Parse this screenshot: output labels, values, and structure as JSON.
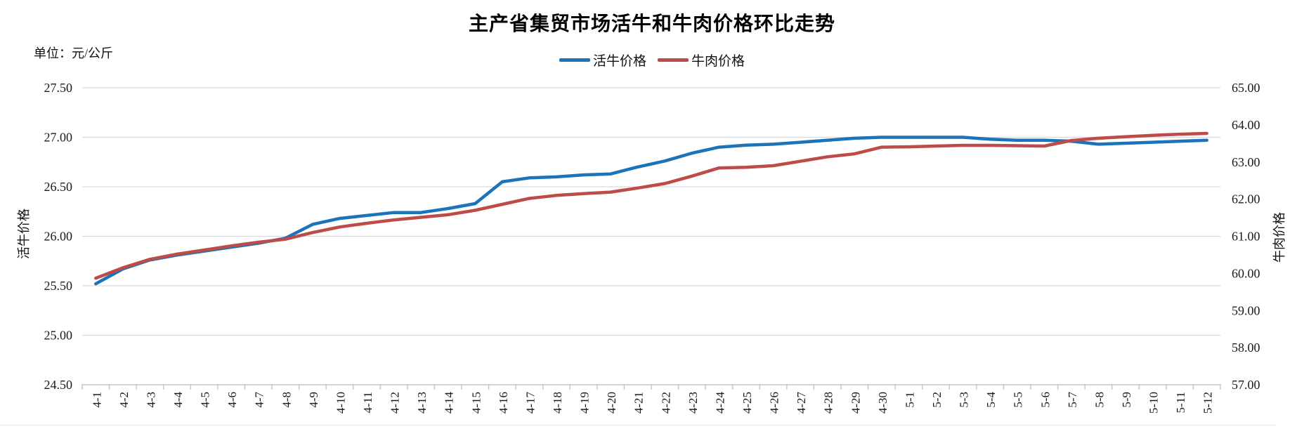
{
  "title": "主产省集贸市场活牛和牛肉价格环比走势",
  "unit_label": "单位：元/公斤",
  "colors": {
    "live_cattle_line": "#1b73b9",
    "beef_line": "#bd4b47",
    "gridline": "#d9d9d9",
    "axis_line": "#c6c6c6",
    "label_text": "#1a1a1a"
  },
  "chart_data": {
    "type": "line",
    "title": "主产省集贸市场活牛和牛肉价格环比走势",
    "unit": "元/公斤",
    "grid": true,
    "legend_position": "top",
    "categories": [
      "4-1",
      "4-2",
      "4-3",
      "4-4",
      "4-5",
      "4-6",
      "4-7",
      "4-8",
      "4-9",
      "4-10",
      "4-11",
      "4-12",
      "4-13",
      "4-14",
      "4-15",
      "4-16",
      "4-17",
      "4-18",
      "4-19",
      "4-20",
      "4-21",
      "4-22",
      "4-23",
      "4-24",
      "4-25",
      "4-26",
      "4-27",
      "4-28",
      "4-29",
      "4-30",
      "5-1",
      "5-2",
      "5-3",
      "5-4",
      "5-5",
      "5-6",
      "5-7",
      "5-8",
      "5-9",
      "5-10",
      "5-11",
      "5-12"
    ],
    "left_axis": {
      "label": "活牛价格",
      "min": 24.5,
      "max": 27.5,
      "step": 0.5,
      "tick_labels": [
        "27.50",
        "27.00",
        "26.50",
        "26.00",
        "25.50",
        "25.00",
        "24.50"
      ]
    },
    "right_axis": {
      "label": "牛肉价格",
      "min": 57,
      "max": 65,
      "step": 1,
      "tick_labels": [
        "65.00",
        "64.00",
        "63.00",
        "62.00",
        "61.00",
        "60.00",
        "59.00",
        "58.00",
        "57.00"
      ]
    },
    "series": [
      {
        "name": "活牛价格",
        "axis": "left",
        "color": "#1b73b9",
        "values": [
          25.52,
          25.67,
          25.76,
          25.81,
          25.85,
          25.89,
          25.93,
          25.98,
          26.12,
          26.18,
          26.21,
          26.24,
          26.24,
          26.28,
          26.33,
          26.55,
          26.59,
          26.6,
          26.62,
          26.63,
          26.7,
          26.76,
          26.84,
          26.9,
          26.92,
          26.93,
          26.95,
          26.97,
          26.99,
          27.0,
          27.0,
          27.0,
          27.0,
          26.98,
          26.97,
          26.97,
          26.96,
          26.93,
          26.94,
          26.95,
          26.96,
          26.97
        ]
      },
      {
        "name": "牛肉价格",
        "axis": "right",
        "color": "#bd4b47",
        "values": [
          59.87,
          60.15,
          60.38,
          60.52,
          60.63,
          60.74,
          60.84,
          60.92,
          61.1,
          61.25,
          61.35,
          61.44,
          61.51,
          61.58,
          61.7,
          61.86,
          62.02,
          62.1,
          62.15,
          62.19,
          62.3,
          62.42,
          62.62,
          62.84,
          62.86,
          62.9,
          63.02,
          63.14,
          63.22,
          63.4,
          63.41,
          63.43,
          63.45,
          63.45,
          63.44,
          63.43,
          63.58,
          63.64,
          63.68,
          63.72,
          63.75,
          63.77
        ]
      }
    ]
  }
}
